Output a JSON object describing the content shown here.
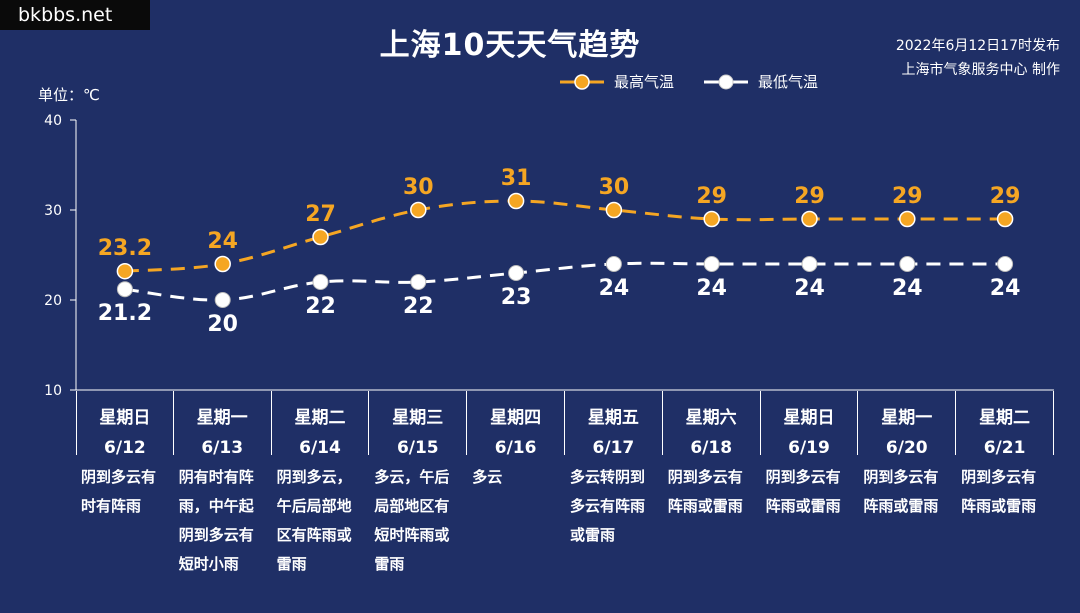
{
  "watermark": "bkbbs.net",
  "title": "上海10天天气趋势",
  "issued": {
    "time": "2022年6月12日17时发布",
    "agency": "上海市气象服务中心 制作"
  },
  "unit": "单位：℃",
  "colors": {
    "background": "#1f2f66",
    "high": "#f5a623",
    "low": "#ffffff",
    "axis": "#ffffff"
  },
  "chart_data": {
    "type": "line",
    "title": "上海10天天气趋势",
    "ylabel": "单位：℃",
    "ylim": [
      10,
      40
    ],
    "yticks": [
      "10",
      "20",
      "30",
      "40"
    ],
    "grid": false,
    "legend_position": "top-right",
    "categories": [
      "6/12",
      "6/13",
      "6/14",
      "6/15",
      "6/16",
      "6/17",
      "6/18",
      "6/19",
      "6/20",
      "6/21"
    ],
    "series": [
      {
        "name": "最高气温",
        "values": [
          23.2,
          24,
          27,
          30,
          31,
          30,
          29,
          29,
          29,
          29
        ],
        "labels": [
          "23.2",
          "24",
          "27",
          "30",
          "31",
          "30",
          "29",
          "29",
          "29",
          "29"
        ],
        "color": "#f5a623"
      },
      {
        "name": "最低气温",
        "values": [
          21.2,
          20,
          22,
          22,
          23,
          24,
          24,
          24,
          24,
          24
        ],
        "labels": [
          "21.2",
          "20",
          "22",
          "22",
          "23",
          "24",
          "24",
          "24",
          "24",
          "24"
        ],
        "color": "#ffffff"
      }
    ]
  },
  "days": [
    {
      "weekday": "星期日",
      "date": "6/12",
      "desc": "阴到多云有时有阵雨"
    },
    {
      "weekday": "星期一",
      "date": "6/13",
      "desc": "阴有时有阵雨，中午起阴到多云有短时小雨"
    },
    {
      "weekday": "星期二",
      "date": "6/14",
      "desc": "阴到多云，午后局部地区有阵雨或雷雨"
    },
    {
      "weekday": "星期三",
      "date": "6/15",
      "desc": "多云，午后局部地区有短时阵雨或雷雨"
    },
    {
      "weekday": "星期四",
      "date": "6/16",
      "desc": "多云"
    },
    {
      "weekday": "星期五",
      "date": "6/17",
      "desc": "多云转阴到多云有阵雨或雷雨"
    },
    {
      "weekday": "星期六",
      "date": "6/18",
      "desc": "阴到多云有阵雨或雷雨"
    },
    {
      "weekday": "星期日",
      "date": "6/19",
      "desc": "阴到多云有阵雨或雷雨"
    },
    {
      "weekday": "星期一",
      "date": "6/20",
      "desc": "阴到多云有阵雨或雷雨"
    },
    {
      "weekday": "星期二",
      "date": "6/21",
      "desc": "阴到多云有阵雨或雷雨"
    }
  ]
}
